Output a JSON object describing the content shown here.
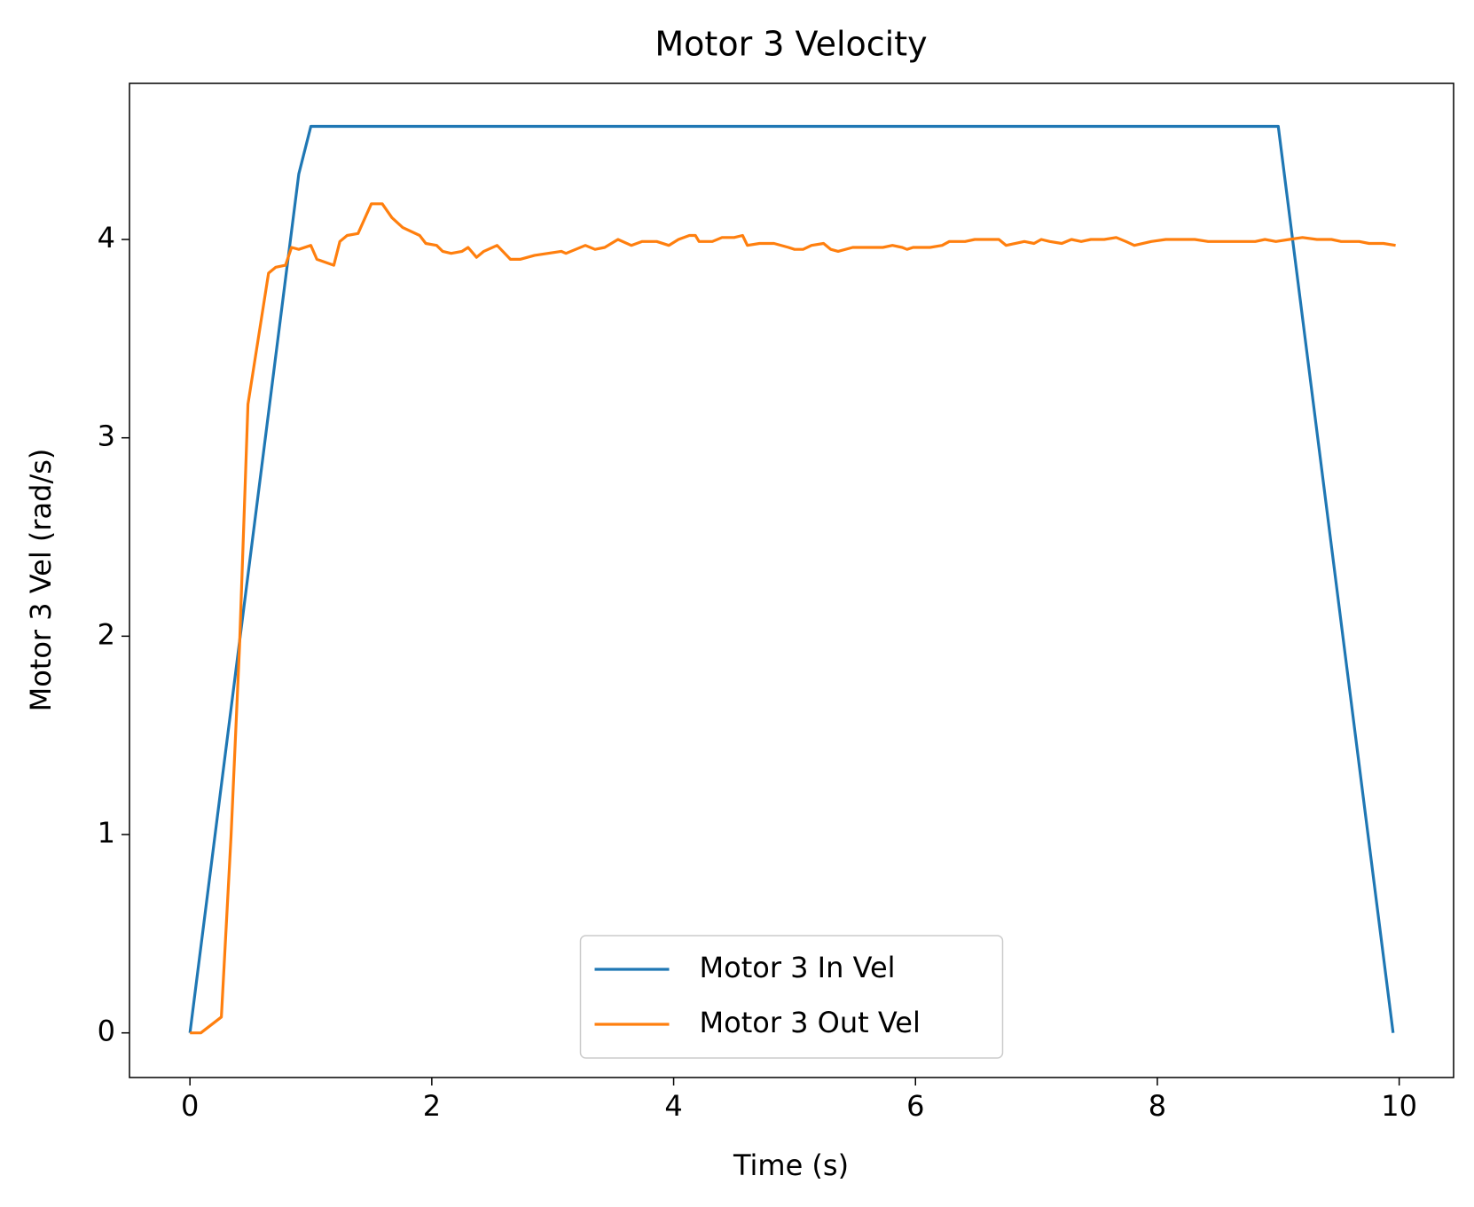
{
  "chart_data": {
    "type": "line",
    "title": "Motor 3 Velocity",
    "xlabel": "Time (s)",
    "ylabel": "Motor 3 Vel (rad/s)",
    "xlim": [
      -0.5,
      10.45
    ],
    "ylim": [
      -0.225,
      4.787
    ],
    "xticks": [
      0,
      2,
      4,
      6,
      8,
      10
    ],
    "yticks": [
      0,
      1,
      2,
      3,
      4
    ],
    "grid": false,
    "legend": "lower center",
    "series": [
      {
        "name": "Motor 3 In Vel",
        "color": "#1f77b4",
        "x": [
          0,
          0.9,
          1.0,
          9.0,
          9.95
        ],
        "values": [
          0,
          4.33,
          4.57,
          4.57,
          0
        ]
      },
      {
        "name": "Motor 3 Out Vel",
        "color": "#ff7f0e",
        "x": [
          0,
          0.09,
          0.26,
          0.34,
          0.41,
          0.48,
          0.65,
          0.71,
          0.79,
          0.84,
          0.9,
          1.0,
          1.05,
          1.19,
          1.24,
          1.3,
          1.39,
          1.5,
          1.59,
          1.67,
          1.76,
          1.9,
          1.95,
          2.04,
          2.09,
          2.16,
          2.25,
          2.3,
          2.37,
          2.43,
          2.54,
          2.65,
          2.73,
          2.85,
          2.96,
          3.07,
          3.11,
          3.27,
          3.35,
          3.43,
          3.54,
          3.65,
          3.74,
          3.86,
          3.96,
          4.04,
          4.13,
          4.18,
          4.21,
          4.32,
          4.4,
          4.5,
          4.57,
          4.61,
          4.71,
          4.83,
          4.95,
          5.0,
          5.07,
          5.14,
          5.24,
          5.3,
          5.36,
          5.48,
          5.54,
          5.63,
          5.73,
          5.81,
          5.89,
          5.93,
          5.98,
          6.12,
          6.22,
          6.28,
          6.41,
          6.49,
          6.69,
          6.75,
          6.9,
          6.98,
          7.04,
          7.11,
          7.21,
          7.29,
          7.37,
          7.45,
          7.56,
          7.66,
          7.74,
          7.81,
          7.95,
          8.07,
          8.31,
          8.42,
          8.81,
          8.89,
          8.98,
          9.09,
          9.2,
          9.32,
          9.44,
          9.52,
          9.67,
          9.75,
          9.87,
          9.97
        ],
        "values": [
          0,
          0,
          0.08,
          0.99,
          1.95,
          3.17,
          3.83,
          3.86,
          3.87,
          3.96,
          3.95,
          3.97,
          3.9,
          3.87,
          3.99,
          4.02,
          4.03,
          4.18,
          4.18,
          4.11,
          4.06,
          4.02,
          3.98,
          3.97,
          3.94,
          3.93,
          3.94,
          3.96,
          3.91,
          3.94,
          3.97,
          3.9,
          3.9,
          3.92,
          3.93,
          3.94,
          3.93,
          3.97,
          3.95,
          3.96,
          4.0,
          3.97,
          3.99,
          3.99,
          3.97,
          4.0,
          4.02,
          4.02,
          3.99,
          3.99,
          4.01,
          4.01,
          4.02,
          3.97,
          3.98,
          3.98,
          3.96,
          3.95,
          3.95,
          3.97,
          3.98,
          3.95,
          3.94,
          3.96,
          3.96,
          3.96,
          3.96,
          3.97,
          3.96,
          3.95,
          3.96,
          3.96,
          3.97,
          3.99,
          3.99,
          4.0,
          4.0,
          3.97,
          3.99,
          3.98,
          4.0,
          3.99,
          3.98,
          4.0,
          3.99,
          4.0,
          4.0,
          4.01,
          3.99,
          3.97,
          3.99,
          4.0,
          4.0,
          3.99,
          3.99,
          4.0,
          3.99,
          4.0,
          4.01,
          4.0,
          4.0,
          3.99,
          3.99,
          3.98,
          3.98,
          3.97
        ]
      }
    ]
  }
}
